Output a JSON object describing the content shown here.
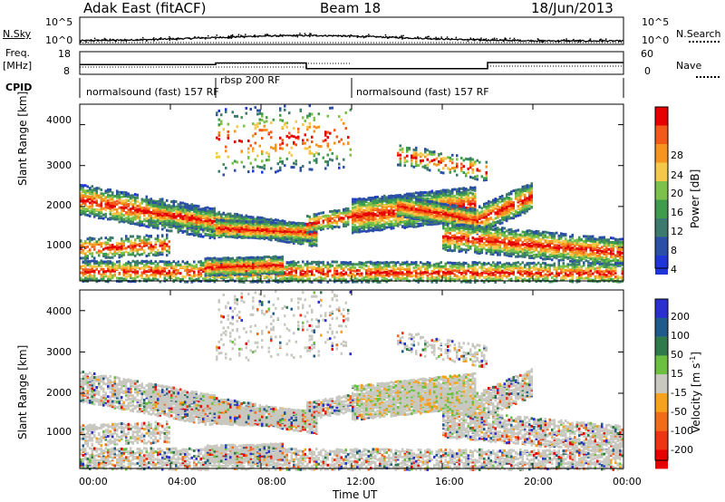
{
  "header": {
    "station": "Adak East (fitACF)",
    "beam": "Beam 18",
    "date": "18/Jun/2013"
  },
  "left_labels": {
    "nsky": "N.Sky",
    "freq": "Freq.",
    "mhz": "[MHz]",
    "cpid": "CPID"
  },
  "right_labels": {
    "nsearch": "N.Search",
    "nave": "Nave"
  },
  "colors": {
    "power_scale": [
      "#1f35d8",
      "#2a4fa6",
      "#3d7a6e",
      "#3f9c4c",
      "#7cc24a",
      "#f6c84a",
      "#f7941d",
      "#f25a1a",
      "#e60000"
    ],
    "velocity_scale": [
      "#2b2fd0",
      "#1f5a8c",
      "#2f7a4a",
      "#6bc040",
      "#c8c8c0",
      "#f6a21e",
      "#f26b18",
      "#ee3512",
      "#e60000"
    ]
  },
  "chart_data": [
    {
      "type": "line",
      "name": "noise-panel",
      "y_left_ticks": [
        "10^5",
        "10^0"
      ],
      "y_right_ticks": [
        "10^5",
        "10^0"
      ],
      "ylabel_left": "N.Sky",
      "ylabel_right": "N.Search"
    },
    {
      "type": "line",
      "name": "frequency-nave-panel",
      "y_left_ticks": [
        "18",
        "8"
      ],
      "y_right_ticks": [
        "60",
        "0"
      ],
      "ylabel_left": "Freq. [MHz]",
      "ylabel_right": "Nave",
      "freq_steps": [
        {
          "x_hours": 0.0,
          "freq_mhz": 12.3
        },
        {
          "x_hours": 6.0,
          "freq_mhz": 13.0
        },
        {
          "x_hours": 10.0,
          "freq_mhz": 10.5
        },
        {
          "x_hours": 18.0,
          "freq_mhz": 13.2
        },
        {
          "x_hours": 24.0,
          "freq_mhz": 13.2
        }
      ]
    },
    {
      "type": "table",
      "name": "cpid-panel",
      "segments": [
        {
          "label": "normalsound (fast) 157 RF",
          "start_hours": 0.0,
          "end_hours": 6.0
        },
        {
          "label": "rbsp 200 RF",
          "start_hours": 6.0,
          "end_hours": 12.0
        },
        {
          "label": "normalsound (fast) 157 RF",
          "start_hours": 12.0,
          "end_hours": 24.0
        }
      ]
    },
    {
      "type": "heatmap",
      "name": "power-panel",
      "ylabel": "Slant Range [km]",
      "yticks": [
        1000,
        2000,
        3000,
        4000
      ],
      "ylim": [
        180,
        4500
      ],
      "xlim_hours": [
        0,
        24
      ],
      "colorbar_label": "Power [dB]",
      "colorbar_ticks": [
        "4",
        "8",
        "12",
        "16",
        "20",
        "24",
        "28"
      ],
      "colorbar_range": [
        0,
        30
      ]
    },
    {
      "type": "heatmap",
      "name": "velocity-panel",
      "ylabel": "Slant Range [km]",
      "yticks": [
        1000,
        2000,
        3000,
        4000
      ],
      "ylim": [
        180,
        4500
      ],
      "xlim_hours": [
        0,
        24
      ],
      "xlabel": "Time UT",
      "xticks": [
        "00:00",
        "04:00",
        "08:00",
        "12:00",
        "16:00",
        "20:00",
        "00:00"
      ],
      "colorbar_label": "Velocity [m s",
      "colorbar_label_sup": "-1",
      "colorbar_label_end": "]",
      "colorbar_ticks": [
        "200",
        "100",
        "50",
        "15",
        "-15",
        "-50",
        "-100",
        "-200"
      ]
    }
  ]
}
